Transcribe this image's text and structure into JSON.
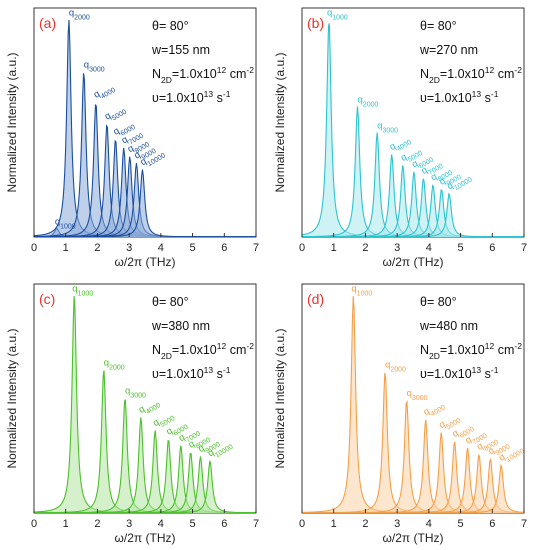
{
  "chart_data": [
    {
      "type": "line",
      "panel_label": "(a)",
      "color": "#1b4f9c",
      "xlabel": "ω/2π (THz)",
      "ylabel": "Normalized Intensity (a.u.)",
      "xlim": [
        0,
        7
      ],
      "xticks": [
        "0",
        "1",
        "2",
        "3",
        "4",
        "5",
        "6",
        "7"
      ],
      "annotations": [
        "θ= 80°",
        "w=155 nm",
        "N2D=1.0x10^12 cm^-2",
        "υ=1.0x10^13 s^-1"
      ],
      "series": [
        {
          "name": "q1000",
          "peak_x": 0.72,
          "peak_y": 0.04
        },
        {
          "name": "q2000",
          "peak_x": 1.1,
          "peak_y": 1.0
        },
        {
          "name": "q3000",
          "peak_x": 1.57,
          "peak_y": 0.76
        },
        {
          "name": "q4000",
          "peak_x": 1.95,
          "peak_y": 0.62
        },
        {
          "name": "q5000",
          "peak_x": 2.3,
          "peak_y": 0.52
        },
        {
          "name": "q6000",
          "peak_x": 2.57,
          "peak_y": 0.45
        },
        {
          "name": "q7000",
          "peak_x": 2.83,
          "peak_y": 0.41
        },
        {
          "name": "q8000",
          "peak_x": 3.02,
          "peak_y": 0.37
        },
        {
          "name": "q9000",
          "peak_x": 3.23,
          "peak_y": 0.34
        },
        {
          "name": "q10000",
          "peak_x": 3.42,
          "peak_y": 0.31
        }
      ]
    },
    {
      "type": "line",
      "panel_label": "(b)",
      "color": "#2dc4cf",
      "xlabel": "ω/2π (THz)",
      "ylabel": "Normalized Intensity (a.u.)",
      "xlim": [
        0,
        7
      ],
      "xticks": [
        "0",
        "1",
        "2",
        "3",
        "4",
        "5",
        "6",
        "7"
      ],
      "annotations": [
        "θ= 80°",
        "w=270 nm",
        "N2D=1.0x10^12 cm^-2",
        "υ=1.0x10^13 s^-1"
      ],
      "series": [
        {
          "name": "q1000",
          "peak_x": 0.85,
          "peak_y": 1.0
        },
        {
          "name": "q2000",
          "peak_x": 1.75,
          "peak_y": 0.6
        },
        {
          "name": "q3000",
          "peak_x": 2.37,
          "peak_y": 0.48
        },
        {
          "name": "q4000",
          "peak_x": 2.83,
          "peak_y": 0.38
        },
        {
          "name": "q5000",
          "peak_x": 3.18,
          "peak_y": 0.33
        },
        {
          "name": "q6000",
          "peak_x": 3.53,
          "peak_y": 0.3
        },
        {
          "name": "q7000",
          "peak_x": 3.83,
          "peak_y": 0.27
        },
        {
          "name": "q8000",
          "peak_x": 4.13,
          "peak_y": 0.24
        },
        {
          "name": "q9000",
          "peak_x": 4.4,
          "peak_y": 0.22
        },
        {
          "name": "q10000",
          "peak_x": 4.64,
          "peak_y": 0.2
        }
      ]
    },
    {
      "type": "line",
      "panel_label": "(c)",
      "color": "#4cbf2c",
      "xlabel": "ω/2π (THz)",
      "ylabel": "Normalized Intensity (a.u.)",
      "xlim": [
        0,
        7
      ],
      "xticks": [
        "0",
        "1",
        "2",
        "3",
        "4",
        "5",
        "6",
        "7"
      ],
      "annotations": [
        "θ= 80°",
        "w=380 nm",
        "N2D=1.0x10^12 cm^-2",
        "υ=1.0x10^13 s^-1"
      ],
      "series": [
        {
          "name": "q1000",
          "peak_x": 1.27,
          "peak_y": 1.0
        },
        {
          "name": "q2000",
          "peak_x": 2.2,
          "peak_y": 0.66
        },
        {
          "name": "q3000",
          "peak_x": 2.87,
          "peak_y": 0.53
        },
        {
          "name": "q4000",
          "peak_x": 3.37,
          "peak_y": 0.44
        },
        {
          "name": "q5000",
          "peak_x": 3.82,
          "peak_y": 0.38
        },
        {
          "name": "q6000",
          "peak_x": 4.24,
          "peak_y": 0.34
        },
        {
          "name": "q7000",
          "peak_x": 4.63,
          "peak_y": 0.31
        },
        {
          "name": "q8000",
          "peak_x": 4.94,
          "peak_y": 0.28
        },
        {
          "name": "q9000",
          "peak_x": 5.25,
          "peak_y": 0.26
        },
        {
          "name": "q10000",
          "peak_x": 5.55,
          "peak_y": 0.24
        }
      ]
    },
    {
      "type": "line",
      "panel_label": "(d)",
      "color": "#f4a04a",
      "xlabel": "ω/2π (THz)",
      "ylabel": "Normalized Intensity (a.u.)",
      "xlim": [
        0,
        7
      ],
      "xticks": [
        "0",
        "1",
        "2",
        "3",
        "4",
        "5",
        "6",
        "7"
      ],
      "annotations": [
        "θ= 80°",
        "w=480 nm",
        "N2D=1.0x10^12 cm^-2",
        "υ=1.0x10^13 s^-1"
      ],
      "series": [
        {
          "name": "q1000",
          "peak_x": 1.62,
          "peak_y": 1.0
        },
        {
          "name": "q2000",
          "peak_x": 2.62,
          "peak_y": 0.65
        },
        {
          "name": "q3000",
          "peak_x": 3.3,
          "peak_y": 0.52
        },
        {
          "name": "q4000",
          "peak_x": 3.9,
          "peak_y": 0.43
        },
        {
          "name": "q5000",
          "peak_x": 4.39,
          "peak_y": 0.37
        },
        {
          "name": "q6000",
          "peak_x": 4.81,
          "peak_y": 0.33
        },
        {
          "name": "q7000",
          "peak_x": 5.22,
          "peak_y": 0.3
        },
        {
          "name": "q8000",
          "peak_x": 5.58,
          "peak_y": 0.27
        },
        {
          "name": "q9000",
          "peak_x": 5.94,
          "peak_y": 0.25
        },
        {
          "name": "q10000",
          "peak_x": 6.28,
          "peak_y": 0.22
        }
      ]
    }
  ]
}
